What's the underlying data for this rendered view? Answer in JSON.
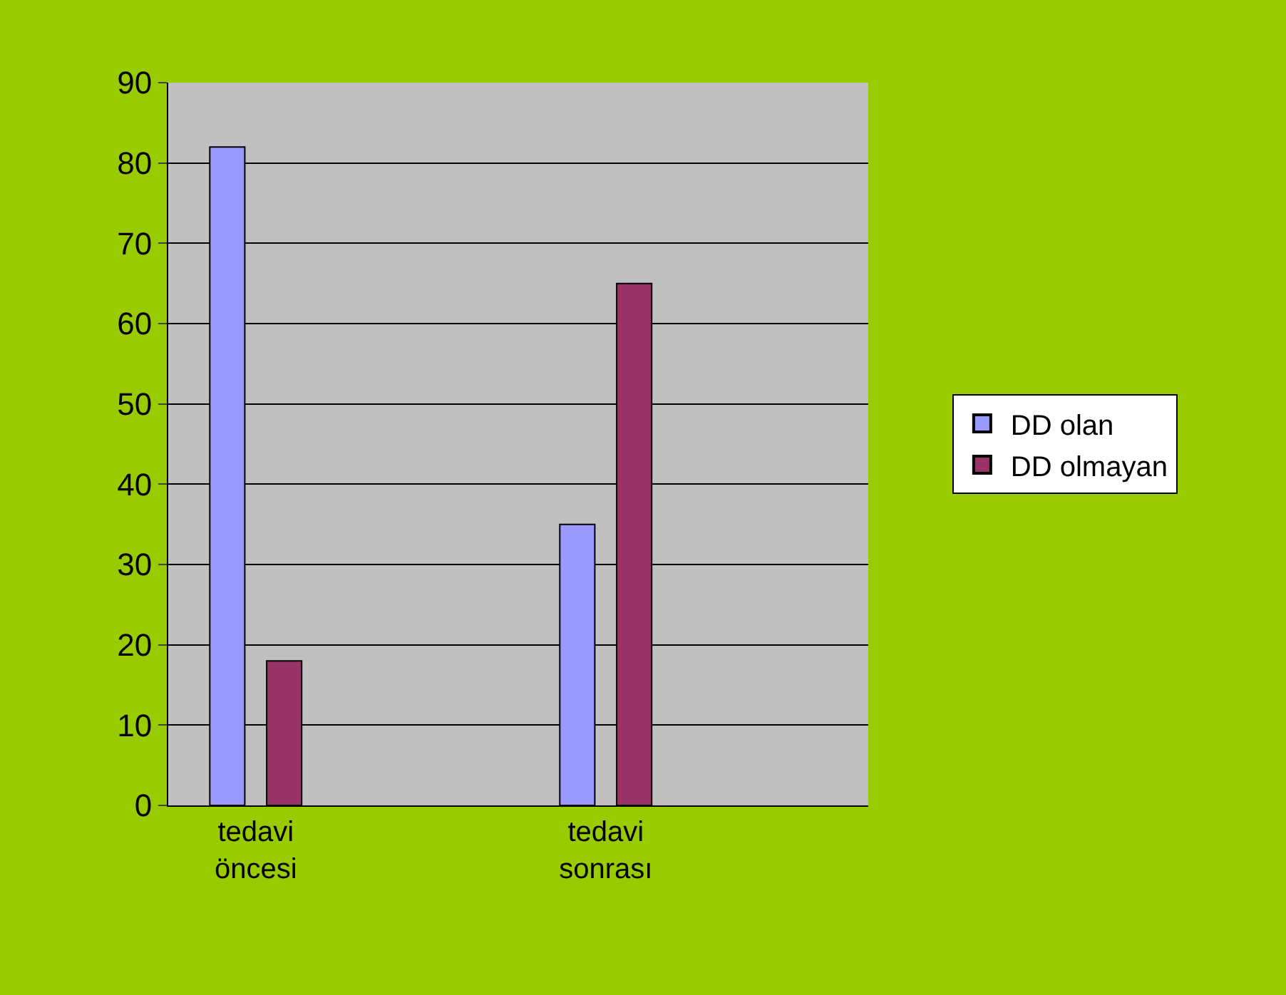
{
  "chart_data": {
    "type": "bar",
    "categories": [
      "tedavi öncesi",
      null,
      "tedavi sonrası",
      null
    ],
    "series": [
      {
        "name": "DD olan",
        "color": "#9999ff",
        "values": [
          82,
          null,
          35,
          null
        ]
      },
      {
        "name": "DD olmayan",
        "color": "#993366",
        "values": [
          18,
          null,
          65,
          null
        ]
      }
    ],
    "ylim": [
      0,
      90
    ],
    "yticks": [
      0,
      10,
      20,
      30,
      40,
      50,
      60,
      70,
      80,
      90
    ],
    "grid": "y",
    "legend": "right"
  }
}
